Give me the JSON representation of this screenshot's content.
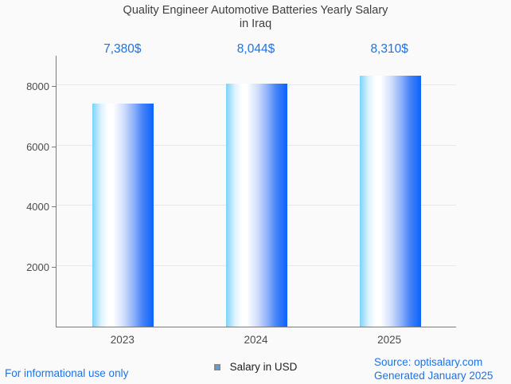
{
  "title": {
    "line1": "Quality Engineer Automotive Batteries Yearly Salary",
    "line2": "in Iraq"
  },
  "chart_data": {
    "type": "bar",
    "title": "Quality Engineer Automotive Batteries Yearly Salary in Iraq",
    "categories": [
      "2023",
      "2024",
      "2025"
    ],
    "values": [
      7380,
      8044,
      8310
    ],
    "value_labels": [
      "7,380$",
      "8,044$",
      "8,310$"
    ],
    "xlabel": "",
    "ylabel": "",
    "ylim": [
      0,
      9000
    ],
    "yticks": [
      2000,
      4000,
      6000,
      8000
    ],
    "grid": true,
    "legend_entries": [
      "Salary in USD"
    ],
    "legend_position": "bottom"
  },
  "legend": {
    "label": "Salary in USD"
  },
  "footer": {
    "left": "For informational use only",
    "source": "Source: optisalary.com",
    "generated": "Generated January 2025"
  },
  "colors": {
    "background": "#fafafa",
    "accent_text": "#1a73e8",
    "title_text": "#3e3e3e",
    "tick_text": "#4b4b4b",
    "axis": "#7a7a7a",
    "grid": "#e7e7e7",
    "bar_left": "#7ad2f9",
    "bar_right": "#0b63fb",
    "legend_marker_fill": "#5b9de8",
    "legend_marker_border": "#8a8a8a",
    "legend_text": "#212121"
  }
}
